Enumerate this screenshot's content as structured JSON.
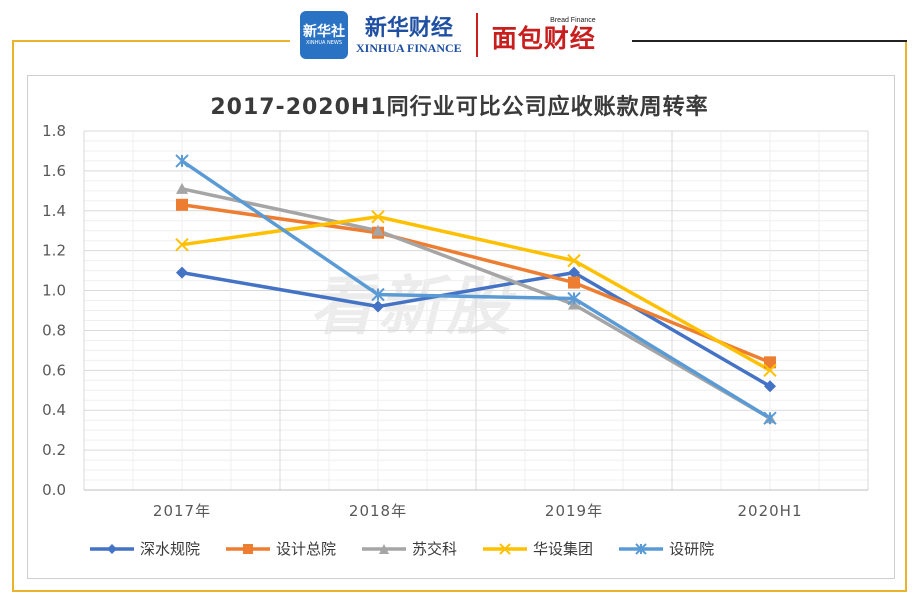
{
  "brand": {
    "logo_text": "新华社",
    "logo_sub": "XINHUA NEWS",
    "name_cn": "新华财经",
    "name_en": "XINHUA FINANCE",
    "partner_small": "Bread Finance",
    "partner_cn": "面包财经"
  },
  "watermark": "看新股",
  "colors": {
    "frame": "#e8b52a",
    "grid": "#d9d9d9"
  },
  "chart_data": {
    "type": "line",
    "title": "2017-2020H1同行业可比公司应收账款周转率",
    "categories": [
      "2017年",
      "2018年",
      "2019年",
      "2020H1"
    ],
    "ylim": [
      0,
      1.8
    ],
    "yticks": [
      "0.0",
      "0.2",
      "0.4",
      "0.6",
      "0.8",
      "1.0",
      "1.2",
      "1.4",
      "1.6",
      "1.8"
    ],
    "grid": true,
    "legend_position": "bottom",
    "series": [
      {
        "name": "深水规院",
        "color": "#4472c4",
        "marker": "diamond",
        "values": [
          1.09,
          0.92,
          1.09,
          0.52
        ]
      },
      {
        "name": "设计总院",
        "color": "#ed7d31",
        "marker": "square",
        "values": [
          1.43,
          1.29,
          1.04,
          0.64
        ]
      },
      {
        "name": "苏交科",
        "color": "#a5a5a5",
        "marker": "triangle",
        "values": [
          1.51,
          1.3,
          0.93,
          0.36
        ]
      },
      {
        "name": "华设集团",
        "color": "#ffc000",
        "marker": "x",
        "values": [
          1.23,
          1.37,
          1.15,
          0.6
        ]
      },
      {
        "name": "设研院",
        "color": "#5b9bd5",
        "marker": "asterisk",
        "values": [
          1.65,
          0.98,
          0.96,
          0.36
        ]
      }
    ]
  }
}
